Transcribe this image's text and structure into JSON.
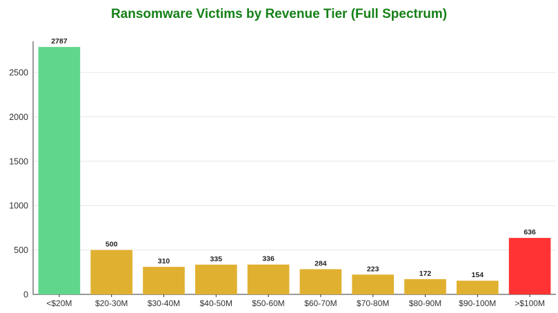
{
  "chart_data": {
    "type": "bar",
    "title": "Ransomware Victims by Revenue Tier (Full Spectrum)",
    "xlabel": "",
    "ylabel": "",
    "categories": [
      "<$20M",
      "$20-30M",
      "$30-40M",
      "$40-50M",
      "$50-60M",
      "$60-70M",
      "$70-80M",
      "$80-90M",
      "$90-100M",
      ">$100M"
    ],
    "values": [
      2787,
      500,
      310,
      335,
      336,
      284,
      223,
      172,
      154,
      636
    ],
    "bar_colors": [
      "#5fd68c",
      "#e0b030",
      "#e0b030",
      "#e0b030",
      "#e0b030",
      "#e0b030",
      "#e0b030",
      "#e0b030",
      "#e0b030",
      "#ff3333"
    ],
    "ylim": [
      0,
      2850
    ],
    "yticks": [
      0,
      500,
      1000,
      1500,
      2000,
      2500
    ],
    "grid": true,
    "legend": "none",
    "title_color": "#158018"
  }
}
